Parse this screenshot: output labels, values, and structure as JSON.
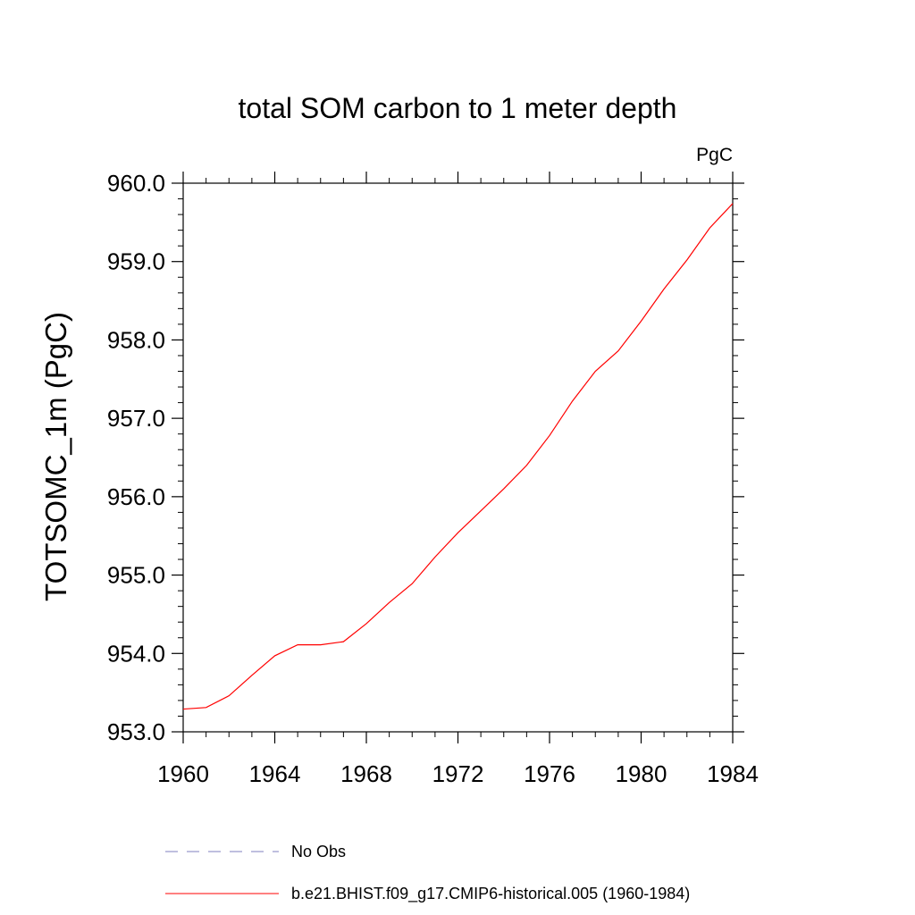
{
  "chart_data": {
    "type": "line",
    "title": "total SOM carbon to 1 meter depth",
    "units_label": "PgC",
    "xlabel": "",
    "ylabel": "TOTSOMC_1m  (PgC)",
    "xlim": [
      1960,
      1984
    ],
    "ylim": [
      953.0,
      960.0
    ],
    "x_ticks": [
      1960,
      1964,
      1968,
      1972,
      1976,
      1980,
      1984
    ],
    "x_tick_labels": [
      "1960",
      "1964",
      "1968",
      "1972",
      "1976",
      "1980",
      "1984"
    ],
    "x_minor_step": 1,
    "y_ticks": [
      953.0,
      954.0,
      955.0,
      956.0,
      957.0,
      958.0,
      959.0,
      960.0
    ],
    "y_tick_labels": [
      "953.0",
      "954.0",
      "955.0",
      "956.0",
      "957.0",
      "958.0",
      "959.0",
      "960.0"
    ],
    "y_minor_step": 0.2,
    "grid": false,
    "series": [
      {
        "name": "b.e21.BHIST.f09_g17.CMIP6-historical.005 (1960-1984)",
        "color": "#ff0000",
        "style": "solid",
        "x": [
          1960,
          1961,
          1962,
          1963,
          1964,
          1965,
          1966,
          1967,
          1968,
          1969,
          1970,
          1971,
          1972,
          1973,
          1974,
          1975,
          1976,
          1977,
          1978,
          1979,
          1980,
          1981,
          1982,
          1983,
          1984
        ],
        "y": [
          953.29,
          953.31,
          953.46,
          953.72,
          953.97,
          954.11,
          954.11,
          954.15,
          954.38,
          954.65,
          954.89,
          955.23,
          955.54,
          955.82,
          956.1,
          956.4,
          956.78,
          957.22,
          957.6,
          957.86,
          958.24,
          958.65,
          959.02,
          959.43,
          959.74
        ]
      }
    ],
    "legend": [
      {
        "label": "No Obs",
        "color": "#7f7fbf",
        "style": "dashed"
      },
      {
        "label": "b.e21.BHIST.f09_g17.CMIP6-historical.005 (1960-1984)",
        "color": "#ff0000",
        "style": "solid"
      }
    ],
    "legend_position": "bottom"
  }
}
